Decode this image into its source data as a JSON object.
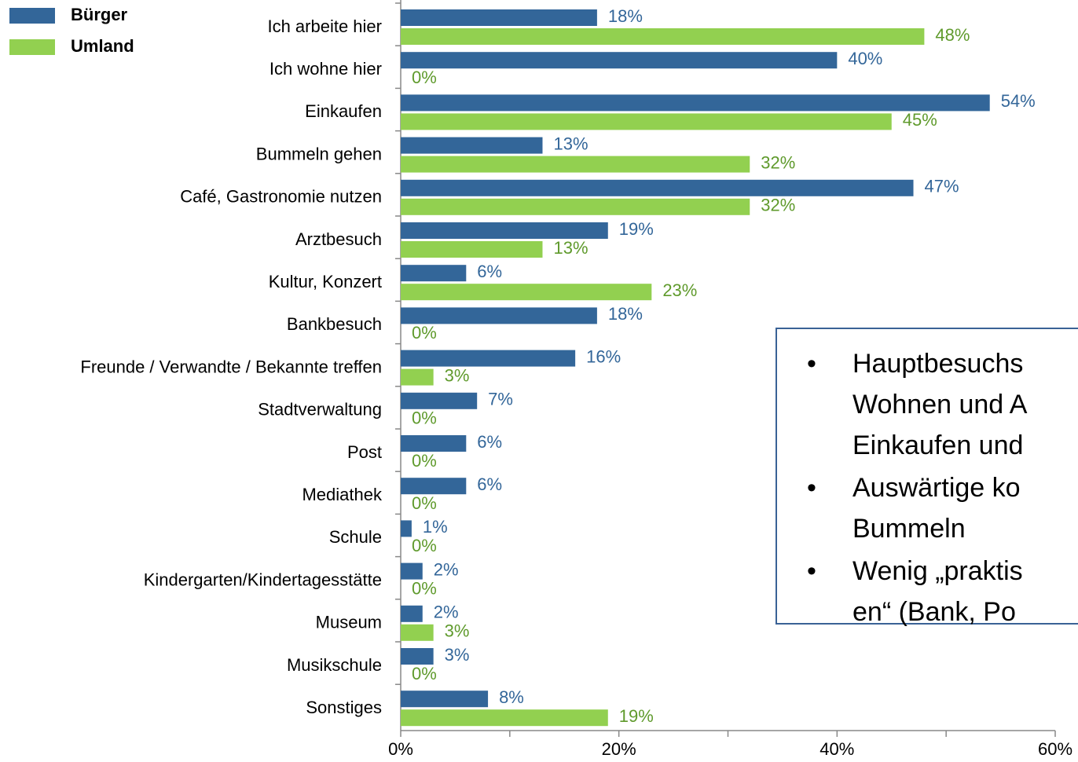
{
  "chart_data": {
    "type": "hbar",
    "categories": [
      "Ich arbeite hier",
      "Ich wohne hier",
      "Einkaufen",
      "Bummeln gehen",
      "Café, Gastronomie nutzen",
      "Arztbesuch",
      "Kultur, Konzert",
      "Bankbesuch",
      "Freunde / Verwandte / Bekannte treffen",
      "Stadtverwaltung",
      "Post",
      "Mediathek",
      "Schule",
      "Kindergarten/Kindertagesstätte",
      "Museum",
      "Musikschule",
      "Sonstiges"
    ],
    "series": [
      {
        "name": "Bürger",
        "color": "#336699",
        "label_color": "#336699",
        "values": [
          18,
          40,
          54,
          13,
          47,
          19,
          6,
          18,
          16,
          7,
          6,
          6,
          1,
          2,
          2,
          3,
          8
        ],
        "value_labels": [
          "18%",
          "40%",
          "54%",
          "13%",
          "47%",
          "19%",
          "6%",
          "18%",
          "16%",
          "7%",
          "6%",
          "6%",
          "1%",
          "2%",
          "2%",
          "3%",
          "8%"
        ]
      },
      {
        "name": "Umland",
        "color": "#92d050",
        "label_color": "#5f9a2c",
        "values": [
          48,
          0,
          45,
          32,
          32,
          13,
          23,
          0,
          3,
          0,
          0,
          0,
          0,
          0,
          3,
          0,
          19
        ],
        "value_labels": [
          "48%",
          "0%",
          "45%",
          "32%",
          "32%",
          "13%",
          "23%",
          "0%",
          "3%",
          "0%",
          "0%",
          "0%",
          "0%",
          "0%",
          "3%",
          "0%",
          "19%"
        ]
      }
    ],
    "xlim": [
      0,
      60
    ],
    "xticks": [
      {
        "value": 0,
        "label": "0%"
      },
      {
        "value": 20,
        "label": "20%"
      },
      {
        "value": 40,
        "label": "40%"
      },
      {
        "value": 60,
        "label": "60%"
      }
    ],
    "xminor_ticks": [
      10,
      30,
      50
    ],
    "legend": "top-left",
    "annotation": [
      [
        "Hauptbesuchs",
        "Wohnen und A",
        "Einkaufen und"
      ],
      [
        "Auswärtige ko",
        "Bummeln"
      ],
      [
        "Wenig „praktis",
        "en“ (Bank, Po"
      ]
    ]
  }
}
